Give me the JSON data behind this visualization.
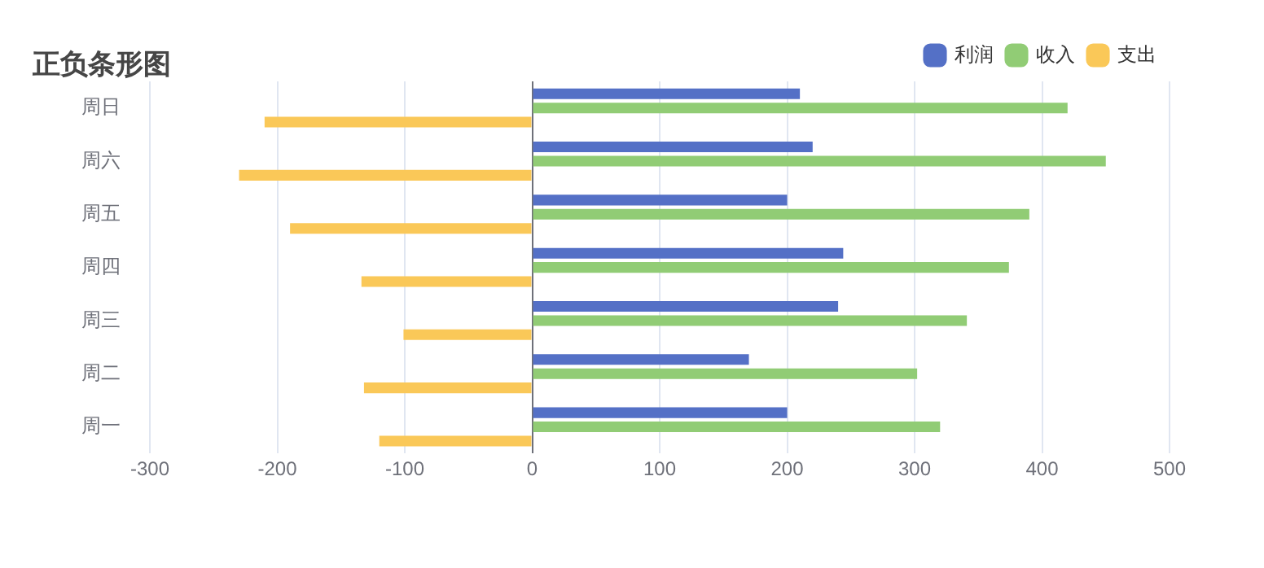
{
  "chart_data": {
    "type": "bar",
    "title": "正负条形图",
    "orientation": "horizontal",
    "categories": [
      "周日",
      "周六",
      "周五",
      "周四",
      "周三",
      "周二",
      "周一"
    ],
    "series": [
      {
        "name": "利润",
        "color": "#5470c6",
        "values": [
          210,
          220,
          200,
          244,
          240,
          170,
          200
        ]
      },
      {
        "name": "收入",
        "color": "#91cc75",
        "values": [
          420,
          450,
          390,
          374,
          341,
          302,
          320
        ]
      },
      {
        "name": "支出",
        "color": "#fac858",
        "values": [
          -210,
          -230,
          -190,
          -134,
          -101,
          -132,
          -120
        ]
      }
    ],
    "xlim": [
      -300,
      500
    ],
    "xticks": [
      -300,
      -200,
      -100,
      0,
      100,
      200,
      300,
      400,
      500
    ],
    "grid": "x",
    "legend": "top right"
  }
}
